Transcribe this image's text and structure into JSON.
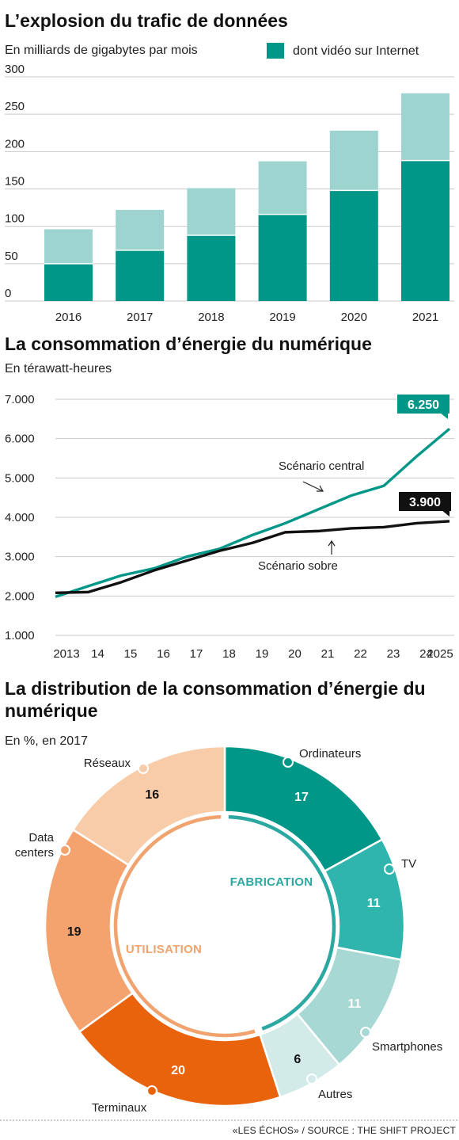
{
  "colors": {
    "teal_dark": "#009688",
    "teal_light": "#9dd4cf",
    "teal_mid": "#2fb4ae",
    "teal_pale": "#a7d8d4",
    "teal_faint": "#d3ebe8",
    "orange_dark": "#e8630c",
    "orange_mid": "#f4a36e",
    "orange_light": "#f8cca8",
    "black": "#111111"
  },
  "footer": {
    "source": "«LES ÉCHOS» / SOURCE : THE SHIFT PROJECT"
  },
  "chart_data": [
    {
      "type": "bar",
      "title": "L’explosion du trafic de données",
      "subtitle": "En milliards de gigabytes par mois",
      "legend": [
        {
          "label": "dont vidéo sur Internet",
          "color": "#009688"
        }
      ],
      "categories": [
        "2016",
        "2017",
        "2018",
        "2019",
        "2020",
        "2021"
      ],
      "series": [
        {
          "name": "dont vidéo sur Internet",
          "values": [
            50,
            68,
            88,
            116,
            148,
            188
          ]
        },
        {
          "values": [
            96,
            122,
            151,
            187,
            228,
            278
          ]
        }
      ],
      "ylim": [
        0,
        300
      ],
      "yticks": [
        0,
        50,
        100,
        150,
        200,
        250,
        300
      ],
      "grid": true
    },
    {
      "type": "line",
      "title": "La consommation d’énergie du numérique",
      "subtitle": "En térawatt-heures",
      "x": [
        2013,
        2014,
        2015,
        2016,
        2017,
        2018,
        2019,
        2020,
        2021,
        2022,
        2023,
        2024,
        2025
      ],
      "xtick_labels": [
        "2013",
        "14",
        "15",
        "16",
        "17",
        "18",
        "19",
        "20",
        "21",
        "22",
        "23",
        "24",
        "2025"
      ],
      "series": [
        {
          "name": "Scénario central",
          "color": "#009688",
          "values": [
            1980,
            2250,
            2520,
            2700,
            3000,
            3200,
            3550,
            3850,
            4200,
            4550,
            4800,
            5550,
            6250
          ],
          "end_label": "6.250"
        },
        {
          "name": "Scénario sobre",
          "color": "#111111",
          "values": [
            2080,
            2100,
            2350,
            2650,
            2900,
            3150,
            3350,
            3620,
            3650,
            3720,
            3750,
            3850,
            3900
          ],
          "end_label": "3.900"
        }
      ],
      "ylim": [
        1000,
        7000
      ],
      "yticks": [
        "1.000",
        "2.000",
        "3.000",
        "4.000",
        "5.000",
        "6.000",
        "7.000"
      ],
      "grid": true
    },
    {
      "type": "pie",
      "title": "La distribution de la consommation d’énergie du numérique",
      "subtitle": "En %, en 2017",
      "slices": [
        {
          "label": "Ordinateurs",
          "value": 17,
          "group": "FABRICATION",
          "color": "#009688",
          "label_color": "#ffffff"
        },
        {
          "label": "TV",
          "value": 11,
          "group": "FABRICATION",
          "color": "#2fb4ae",
          "label_color": "#ffffff"
        },
        {
          "label": "Smartphones",
          "value": 11,
          "group": "FABRICATION",
          "color": "#a7d8d4",
          "label_color": "#ffffff"
        },
        {
          "label": "Autres",
          "value": 6,
          "group": "FABRICATION",
          "color": "#d3ebe8",
          "label_color": "#111111"
        },
        {
          "label": "Terminaux",
          "value": 20,
          "group": "UTILISATION",
          "color": "#e8630c",
          "label_color": "#ffffff"
        },
        {
          "label": "Data centers",
          "value": 19,
          "group": "UTILISATION",
          "color": "#f4a36e",
          "label_color": "#111111"
        },
        {
          "label": "Réseaux",
          "value": 16,
          "group": "UTILISATION",
          "color": "#f8cca8",
          "label_color": "#111111"
        }
      ],
      "groups": [
        {
          "name": "FABRICATION",
          "color": "#2aa8a1"
        },
        {
          "name": "UTILISATION",
          "color": "#f0a36e"
        }
      ]
    }
  ]
}
